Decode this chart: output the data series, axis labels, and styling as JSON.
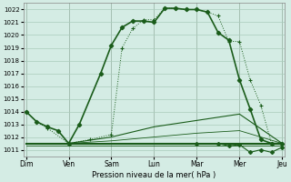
{
  "xlabel": "Pression niveau de la mer( hPa )",
  "background_color": "#d4ece4",
  "grid_color": "#aaccbb",
  "line_color": "#1a5c1a",
  "ylim": [
    1010.5,
    1022.5
  ],
  "yticks": [
    1011,
    1012,
    1013,
    1014,
    1015,
    1016,
    1017,
    1018,
    1019,
    1020,
    1021,
    1022
  ],
  "day_labels": [
    "Dim",
    "Ven",
    "Sam",
    "Lun",
    "Mar",
    "Mer",
    "Jeu"
  ],
  "day_positions": [
    0,
    8,
    16,
    24,
    32,
    40,
    48
  ],
  "series": {
    "dotted_line": {
      "x": [
        0,
        2,
        4,
        8,
        12,
        16,
        18,
        20,
        22,
        24,
        26,
        28,
        30,
        32,
        34,
        36,
        38,
        40,
        42,
        44,
        46,
        48
      ],
      "y": [
        1014.0,
        1013.2,
        1012.7,
        1011.5,
        1011.8,
        1012.2,
        1019.0,
        1020.5,
        1021.2,
        1021.2,
        1022.1,
        1022.1,
        1022.0,
        1022.0,
        1021.8,
        1021.5,
        1019.5,
        1019.5,
        1016.5,
        1014.5,
        1011.5,
        1011.5
      ]
    },
    "solid_markers": {
      "x": [
        0,
        2,
        4,
        6,
        8,
        10,
        14,
        16,
        18,
        20,
        22,
        24,
        26,
        28,
        30,
        32,
        34,
        36,
        38,
        40,
        42,
        44,
        46,
        48
      ],
      "y": [
        1014.0,
        1013.2,
        1012.8,
        1012.5,
        1011.5,
        1013.0,
        1017.0,
        1019.2,
        1020.6,
        1021.1,
        1021.1,
        1021.0,
        1022.1,
        1022.1,
        1022.0,
        1022.0,
        1021.8,
        1020.2,
        1019.6,
        1016.5,
        1014.2,
        1011.8,
        1011.5,
        1011.5
      ]
    },
    "spread1": {
      "x": [
        0,
        8,
        16,
        24,
        32,
        40,
        48
      ],
      "y": [
        1011.5,
        1011.5,
        1012.0,
        1012.8,
        1013.3,
        1013.8,
        1011.5
      ]
    },
    "spread2": {
      "x": [
        0,
        8,
        16,
        24,
        32,
        40,
        48
      ],
      "y": [
        1011.5,
        1011.5,
        1011.7,
        1012.0,
        1012.3,
        1012.5,
        1011.5
      ]
    },
    "flat1": {
      "x": [
        0,
        48
      ],
      "y": [
        1011.5,
        1011.5
      ]
    },
    "flat2": {
      "x": [
        0,
        48
      ],
      "y": [
        1011.3,
        1011.3
      ]
    },
    "bottom_right": {
      "x": [
        32,
        36,
        38,
        40,
        42,
        44,
        46,
        48
      ],
      "y": [
        1011.5,
        1011.5,
        1011.3,
        1011.4,
        1010.8,
        1011.0,
        1010.8,
        1011.2
      ]
    }
  }
}
